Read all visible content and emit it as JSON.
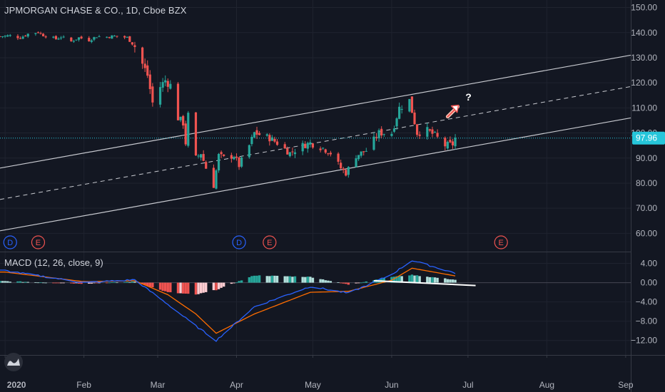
{
  "title": "JPMORGAN CHASE & CO., 1D, Cboe BZX",
  "colors": {
    "background": "#131722",
    "grid": "#1f232f",
    "up": "#26a69a",
    "down": "#ef5350",
    "channel": "#c8cad0",
    "current_price": "#26c6da",
    "macd_line": "#2962ff",
    "signal_line": "#ff6d00",
    "event_D": "#2962ff",
    "event_E": "#ef5350"
  },
  "price_axis": {
    "labels": [
      "150.00",
      "140.00",
      "130.00",
      "120.00",
      "110.00",
      "100.00",
      "90.00",
      "80.00",
      "70.00",
      "60.00"
    ],
    "current": "97.96"
  },
  "macd_axis": {
    "labels": [
      "4.00",
      "0.00",
      "−4.00",
      "−8.00",
      "−12.00"
    ]
  },
  "time_axis": {
    "labels": [
      "2020",
      "Feb",
      "Mar",
      "Apr",
      "May",
      "Jun",
      "Jul",
      "Aug",
      "Sep"
    ]
  },
  "events": [
    {
      "label": "D",
      "kind": "D"
    },
    {
      "label": "E",
      "kind": "E"
    },
    {
      "label": "D",
      "kind": "D"
    },
    {
      "label": "E",
      "kind": "E"
    },
    {
      "label": "E",
      "kind": "E"
    }
  ],
  "annotation": "?",
  "macd_title": "MACD (12, 26, close, 9)",
  "chart_data": [
    {
      "type": "candlestick",
      "title": "JPMORGAN CHASE & CO., 1D, Cboe BZX",
      "ylim": [
        53,
        153
      ],
      "current_price": 97.96,
      "x_start": "2019-12-30",
      "x_end": "2020-09-03",
      "close_path": [
        [
          "2019-12-30",
          138.5
        ],
        [
          "2020-01-03",
          138.8
        ],
        [
          "2020-01-07",
          138.0
        ],
        [
          "2020-01-10",
          139.5
        ],
        [
          "2020-01-14",
          140.2
        ],
        [
          "2020-01-16",
          139.0
        ],
        [
          "2020-01-21",
          137.5
        ],
        [
          "2020-01-23",
          138.3
        ],
        [
          "2020-01-27",
          136.5
        ],
        [
          "2020-01-30",
          138.0
        ],
        [
          "2020-02-03",
          137.0
        ],
        [
          "2020-02-06",
          138.5
        ],
        [
          "2020-02-10",
          138.3
        ],
        [
          "2020-02-13",
          138.6
        ],
        [
          "2020-02-18",
          138.0
        ],
        [
          "2020-02-21",
          134.5
        ],
        [
          "2020-02-24",
          127.5
        ],
        [
          "2020-02-26",
          123.0
        ],
        [
          "2020-02-28",
          112.0
        ],
        [
          "2020-03-02",
          118.5
        ],
        [
          "2020-03-04",
          121.0
        ],
        [
          "2020-03-06",
          119.0
        ],
        [
          "2020-03-09",
          106.0
        ],
        [
          "2020-03-11",
          104.0
        ],
        [
          "2020-03-12",
          96.0
        ],
        [
          "2020-03-13",
          107.0
        ],
        [
          "2020-03-16",
          90.0
        ],
        [
          "2020-03-18",
          92.0
        ],
        [
          "2020-03-20",
          86.0
        ],
        [
          "2020-03-23",
          79.0
        ],
        [
          "2020-03-25",
          91.0
        ],
        [
          "2020-03-27",
          90.0
        ],
        [
          "2020-03-31",
          91.0
        ],
        [
          "2020-04-02",
          87.0
        ],
        [
          "2020-04-06",
          95.0
        ],
        [
          "2020-04-08",
          100.0
        ],
        [
          "2020-04-14",
          98.0
        ],
        [
          "2020-04-17",
          96.0
        ],
        [
          "2020-04-22",
          92.0
        ],
        [
          "2020-04-27",
          95.0
        ],
        [
          "2020-04-30",
          96.0
        ],
        [
          "2020-05-05",
          94.0
        ],
        [
          "2020-05-08",
          92.0
        ],
        [
          "2020-05-12",
          86.0
        ],
        [
          "2020-05-14",
          84.0
        ],
        [
          "2020-05-18",
          91.0
        ],
        [
          "2020-05-22",
          93.0
        ],
        [
          "2020-05-27",
          100.0
        ],
        [
          "2020-06-01",
          100.0
        ],
        [
          "2020-06-04",
          110.0
        ],
        [
          "2020-06-08",
          113.0
        ],
        [
          "2020-06-11",
          100.0
        ],
        [
          "2020-06-15",
          101.0
        ],
        [
          "2020-06-18",
          99.0
        ],
        [
          "2020-06-22",
          95.0
        ],
        [
          "2020-06-25",
          95.5
        ],
        [
          "2020-06-26",
          97.96
        ]
      ]
    },
    {
      "type": "line",
      "title": "MACD (12, 26, close, 9)",
      "ylim": [
        -15,
        6
      ],
      "x": [
        "2020-01-01",
        "2020-02-01",
        "2020-02-21",
        "2020-03-05",
        "2020-03-16",
        "2020-03-24",
        "2020-04-08",
        "2020-04-30",
        "2020-05-15",
        "2020-06-01",
        "2020-06-09",
        "2020-06-26"
      ],
      "series": [
        {
          "name": "MACD",
          "values": [
            2.5,
            0.0,
            0.6,
            -4.5,
            -9.0,
            -12.0,
            -5.0,
            -0.8,
            -2.2,
            1.7,
            4.6,
            2.0
          ]
        },
        {
          "name": "Signal",
          "values": [
            2.2,
            0.2,
            0.4,
            -2.5,
            -6.5,
            -10.5,
            -6.5,
            -2.0,
            -1.8,
            0.5,
            3.0,
            1.4
          ]
        },
        {
          "name": "Histogram",
          "values": [
            0.3,
            -0.2,
            0.2,
            -2.0,
            -2.5,
            -1.5,
            1.5,
            1.2,
            -0.4,
            1.2,
            1.6,
            0.6
          ]
        }
      ]
    }
  ]
}
